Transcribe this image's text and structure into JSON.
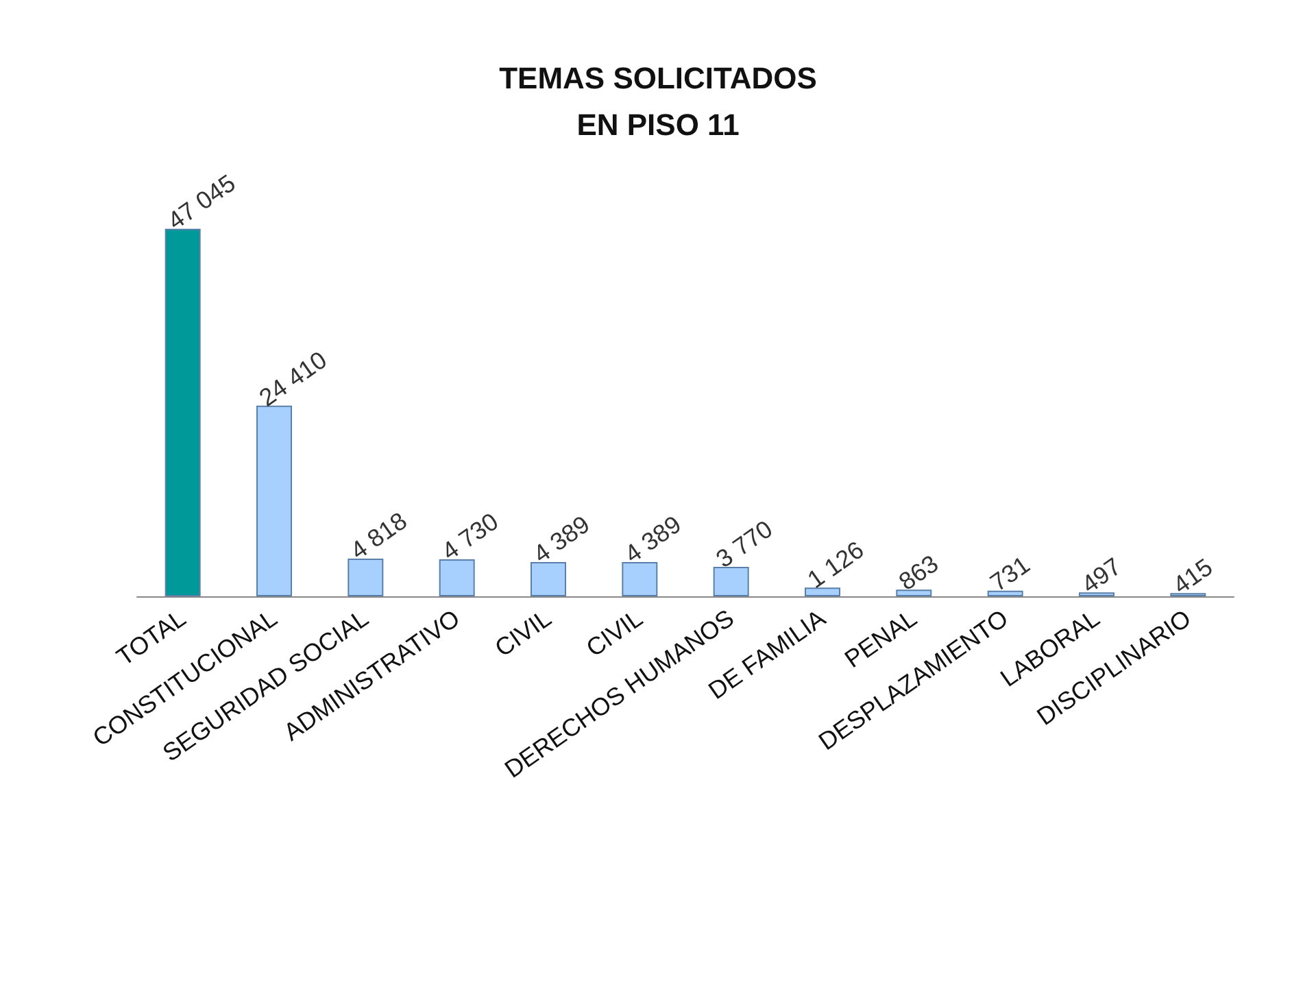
{
  "chart_data": {
    "type": "bar",
    "title": "TEMAS SOLICITADOS\nEN PISO 11",
    "categories": [
      "TOTAL",
      "CONSTITUCIONAL",
      "SEGURIDAD SOCIAL",
      "ADMINISTRATIVO",
      "CIVIL",
      "CIVIL",
      "DERECHOS HUMANOS",
      "DE FAMILIA",
      "PENAL",
      "DESPLAZAMIENTO",
      "LABORAL",
      "DISCIPLINARIO"
    ],
    "values": [
      47045,
      24410,
      4818,
      4730,
      4389,
      4389,
      3770,
      1126,
      863,
      731,
      497,
      415
    ],
    "value_labels": [
      "47 045",
      "24 410",
      "4 818",
      "4 730",
      "4 389",
      "4 389",
      "3 770",
      "1 126",
      "863",
      "731",
      "497",
      "415"
    ],
    "colors": [
      "#009999",
      "#a8d0ff",
      "#a8d0ff",
      "#a8d0ff",
      "#a8d0ff",
      "#a8d0ff",
      "#a8d0ff",
      "#a8d0ff",
      "#a8d0ff",
      "#a8d0ff",
      "#a8d0ff",
      "#a8d0ff"
    ]
  }
}
